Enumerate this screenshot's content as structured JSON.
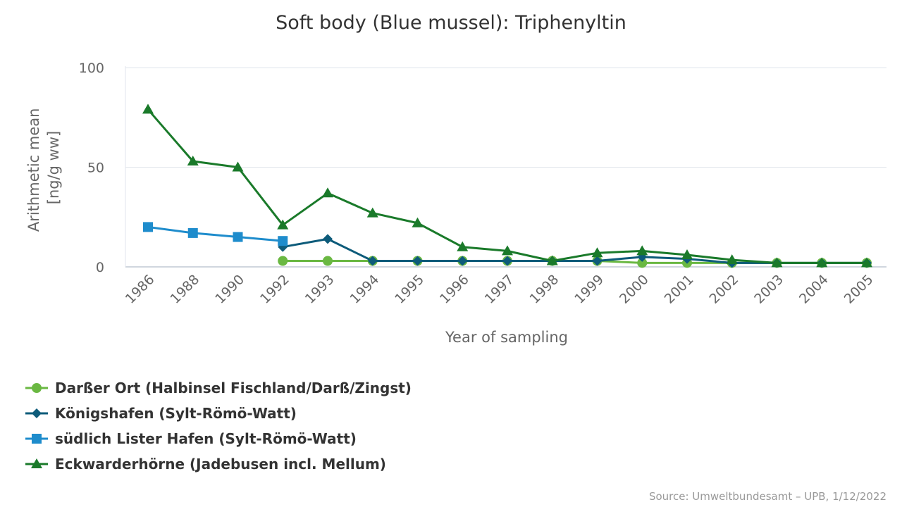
{
  "chart_data": {
    "type": "line",
    "title": "Soft body (Blue mussel): Triphenyltin",
    "xlabel": "Year of sampling",
    "ylabel_lines": [
      "Arithmetic mean",
      "[ng/g ww]"
    ],
    "categories": [
      "1986",
      "1988",
      "1990",
      "1992",
      "1993",
      "1994",
      "1995",
      "1996",
      "1997",
      "1998",
      "1999",
      "2000",
      "2001",
      "2002",
      "2003",
      "2004",
      "2005"
    ],
    "ylim": [
      0,
      100
    ],
    "yticks": [
      0,
      50,
      100
    ],
    "grid": true,
    "legend_position": "bottom-left",
    "series": [
      {
        "name": "Darßer Ort (Halbinsel Fischland/Darß/Zingst)",
        "color": "#6ab842",
        "marker": "circle",
        "values": [
          null,
          null,
          null,
          3,
          3,
          3,
          3,
          3,
          3,
          3,
          3,
          2,
          2,
          2,
          2,
          2,
          2
        ]
      },
      {
        "name": "Königshafen (Sylt-Römö-Watt)",
        "color": "#0d5b7a",
        "marker": "diamond",
        "values": [
          null,
          null,
          null,
          10,
          14,
          3,
          3,
          3,
          3,
          3,
          3,
          5,
          4,
          2,
          2,
          2,
          2
        ]
      },
      {
        "name": "südlich Lister Hafen (Sylt-Römö-Watt)",
        "color": "#1e8ccc",
        "marker": "square",
        "values": [
          20,
          17,
          15,
          13,
          null,
          null,
          null,
          null,
          null,
          null,
          null,
          null,
          null,
          null,
          null,
          null,
          null
        ]
      },
      {
        "name": "Eckwarderhörne (Jadebusen incl. Mellum)",
        "color": "#1a7a2a",
        "marker": "triangle",
        "values": [
          79,
          53,
          50,
          21,
          37,
          27,
          22,
          10,
          8,
          3,
          7,
          8,
          6,
          3.5,
          2,
          2,
          2
        ]
      }
    ]
  },
  "source": "Source: Umweltbundesamt – UPB, 1/12/2022"
}
